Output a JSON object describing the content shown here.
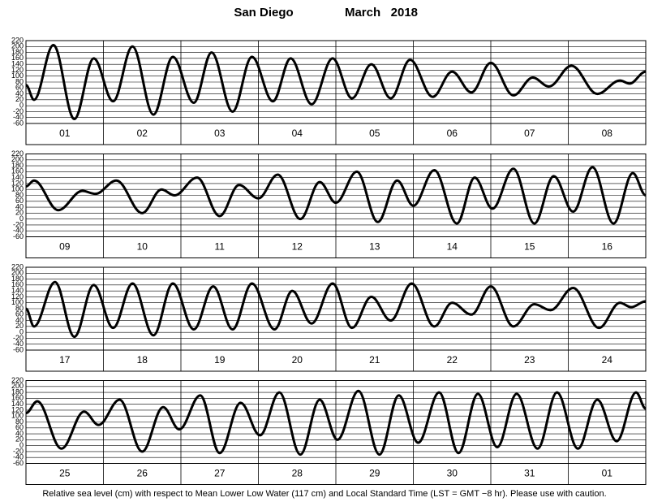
{
  "title": "San Diego",
  "date": "March   2018",
  "footnote": "Relative sea level (cm) with respect to Mean Lower Low Water (117 cm) and Local Standard Time (LST = GMT −8 hr). Please use with caution.",
  "chart_data": [
    {
      "type": "line",
      "color": "#000000",
      "grid": true,
      "xlim": [
        0,
        192
      ],
      "xticks": [
        24,
        48,
        72,
        96,
        120,
        144,
        168
      ],
      "ylim": [
        -60,
        220
      ],
      "yticks": [
        -60,
        -40,
        -20,
        0,
        20,
        40,
        60,
        80,
        100,
        120,
        140,
        160,
        180,
        200,
        220
      ],
      "day_labels": [
        "01",
        "02",
        "03",
        "04",
        "05",
        "06",
        "07",
        "08"
      ],
      "x": [
        0,
        2.5,
        8.5,
        15,
        21,
        27,
        33,
        39.5,
        45.5,
        52,
        57.5,
        64,
        70,
        76.5,
        82,
        88.5,
        95,
        101,
        107,
        113,
        119,
        126,
        132,
        138,
        144,
        151,
        157,
        162,
        169,
        177,
        184,
        187,
        192
      ],
      "values": [
        70,
        20,
        205,
        -45,
        160,
        15,
        200,
        -30,
        165,
        10,
        180,
        -20,
        165,
        15,
        160,
        5,
        160,
        25,
        140,
        25,
        155,
        30,
        115,
        45,
        145,
        35,
        95,
        65,
        135,
        40,
        85,
        75,
        115
      ]
    },
    {
      "type": "line",
      "color": "#000000",
      "grid": true,
      "xlim": [
        0,
        192
      ],
      "xticks": [
        24,
        48,
        72,
        96,
        120,
        144,
        168
      ],
      "ylim": [
        -60,
        220
      ],
      "yticks": [
        -60,
        -40,
        -20,
        0,
        20,
        40,
        60,
        80,
        100,
        120,
        140,
        160,
        180,
        200,
        220
      ],
      "day_labels": [
        "09",
        "10",
        "11",
        "12",
        "13",
        "14",
        "15",
        "16"
      ],
      "x": [
        0,
        2.5,
        10,
        17.5,
        21.5,
        28,
        36,
        42,
        46,
        53,
        60,
        66,
        72,
        78,
        85,
        91,
        96,
        102.5,
        109,
        115,
        120,
        126.5,
        133.5,
        139,
        144.5,
        151,
        157.5,
        163.5,
        169.5,
        175.5,
        182,
        188,
        192
      ],
      "values": [
        110,
        130,
        30,
        95,
        85,
        130,
        20,
        100,
        80,
        140,
        10,
        115,
        70,
        150,
        0,
        125,
        55,
        160,
        -10,
        130,
        45,
        165,
        -15,
        140,
        35,
        170,
        -15,
        145,
        25,
        175,
        -15,
        155,
        80
      ]
    },
    {
      "type": "line",
      "color": "#000000",
      "grid": true,
      "xlim": [
        0,
        192
      ],
      "xticks": [
        24,
        48,
        72,
        96,
        120,
        144,
        168
      ],
      "ylim": [
        -60,
        220
      ],
      "yticks": [
        -60,
        -40,
        -20,
        0,
        20,
        40,
        60,
        80,
        100,
        120,
        140,
        160,
        180,
        200,
        220
      ],
      "day_labels": [
        "17",
        "18",
        "19",
        "20",
        "21",
        "22",
        "23",
        "24"
      ],
      "x": [
        0,
        2.5,
        9,
        15,
        21,
        27,
        33,
        39.5,
        45.5,
        52,
        58,
        64,
        70,
        77,
        82.5,
        88.5,
        95,
        101,
        107,
        113,
        119.5,
        126.5,
        132,
        138,
        144,
        151,
        157.5,
        162.5,
        169.5,
        177.5,
        184,
        187.5,
        192
      ],
      "values": [
        80,
        20,
        170,
        -15,
        160,
        15,
        165,
        -10,
        165,
        10,
        155,
        10,
        165,
        10,
        140,
        30,
        165,
        15,
        120,
        40,
        165,
        20,
        100,
        60,
        155,
        20,
        95,
        75,
        150,
        15,
        100,
        85,
        105
      ]
    },
    {
      "type": "line",
      "color": "#000000",
      "grid": true,
      "xlim": [
        0,
        192
      ],
      "xticks": [
        24,
        48,
        72,
        96,
        120,
        144,
        168
      ],
      "ylim": [
        -60,
        220
      ],
      "yticks": [
        -60,
        -40,
        -20,
        0,
        20,
        40,
        60,
        80,
        100,
        120,
        140,
        160,
        180,
        200,
        220
      ],
      "day_labels": [
        "25",
        "26",
        "27",
        "28",
        "29",
        "30",
        "31",
        "01"
      ],
      "x": [
        0,
        3.5,
        11,
        18,
        22.5,
        29,
        36,
        42.5,
        47.5,
        54,
        60,
        66.5,
        72.5,
        78.5,
        85,
        91,
        96.5,
        103,
        109.5,
        115.5,
        121.5,
        128,
        134,
        140,
        146,
        152,
        158.5,
        164.5,
        171,
        177,
        183,
        189,
        192
      ],
      "values": [
        110,
        150,
        -10,
        115,
        70,
        155,
        -20,
        130,
        55,
        170,
        -25,
        145,
        35,
        180,
        -30,
        155,
        20,
        185,
        -30,
        170,
        10,
        180,
        -25,
        175,
        -5,
        175,
        -10,
        180,
        -10,
        155,
        15,
        180,
        125
      ]
    }
  ]
}
